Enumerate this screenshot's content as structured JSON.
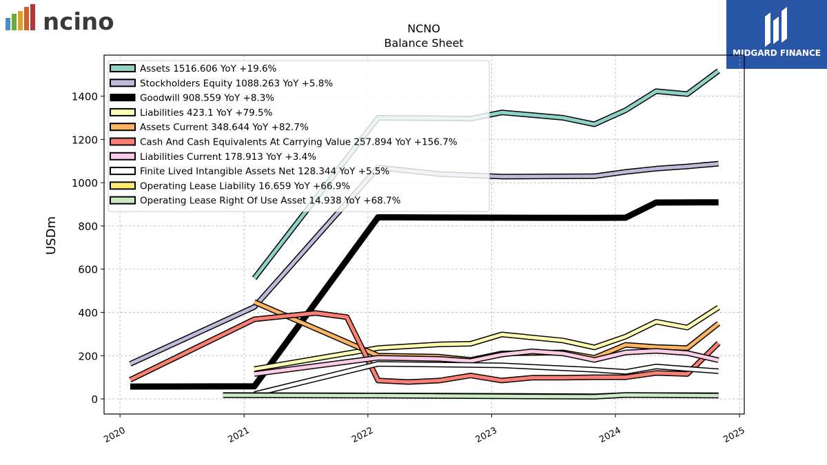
{
  "brand": {
    "left_logo_text": "ncino.",
    "right_logo_text": "MIDGARD FINANCE"
  },
  "chart_data": {
    "type": "line",
    "title": "NCNO",
    "subtitle": "Balance  Sheet",
    "ylabel": "USDm",
    "xlabel": "",
    "xlim": [
      "2019-11-15",
      "2025-01-15"
    ],
    "ylim": [
      -70,
      1590
    ],
    "x_ticks": [
      "2020",
      "2021",
      "2022",
      "2023",
      "2024",
      "2025"
    ],
    "y_ticks": [
      0,
      200,
      400,
      600,
      800,
      1000,
      1200,
      1400
    ],
    "grid": true,
    "legend_position": "top-left",
    "series": [
      {
        "name": "Assets  1516.606 YoY +19.6%",
        "color": "#8dd3c7",
        "width": 5,
        "points": [
          [
            "2021-01-31",
            558
          ],
          [
            "2022-01-31",
            1300
          ],
          [
            "2022-07-31",
            1298
          ],
          [
            "2022-10-31",
            1296
          ],
          [
            "2023-01-31",
            1325
          ],
          [
            "2023-07-31",
            1300
          ],
          [
            "2023-10-31",
            1270
          ],
          [
            "2024-01-31",
            1335
          ],
          [
            "2024-04-30",
            1423
          ],
          [
            "2024-07-31",
            1410
          ],
          [
            "2024-10-31",
            1517
          ]
        ]
      },
      {
        "name": "Stockholders Equity  1088.263 YoY +5.8%",
        "color": "#bebada",
        "width": 5,
        "points": [
          [
            "2020-01-31",
            162
          ],
          [
            "2021-01-31",
            425
          ],
          [
            "2022-01-31",
            1070
          ],
          [
            "2022-07-31",
            1040
          ],
          [
            "2023-01-31",
            1028
          ],
          [
            "2023-10-31",
            1030
          ],
          [
            "2024-01-31",
            1050
          ],
          [
            "2024-04-30",
            1065
          ],
          [
            "2024-07-31",
            1075
          ],
          [
            "2024-10-31",
            1088
          ]
        ]
      },
      {
        "name": "Goodwill  908.559 YoY +8.3%",
        "color": "#000000",
        "width": 9,
        "points": [
          [
            "2020-01-31",
            57
          ],
          [
            "2021-01-31",
            58
          ],
          [
            "2022-01-31",
            840
          ],
          [
            "2023-01-31",
            838
          ],
          [
            "2023-10-31",
            837
          ],
          [
            "2024-01-31",
            838
          ],
          [
            "2024-04-30",
            908
          ],
          [
            "2024-10-31",
            909
          ]
        ]
      },
      {
        "name": "Liabilities  423.1 YoY +79.5%",
        "color": "#ffffb3",
        "width": 5,
        "points": [
          [
            "2021-01-31",
            138
          ],
          [
            "2022-01-31",
            235
          ],
          [
            "2022-07-31",
            252
          ],
          [
            "2022-10-31",
            255
          ],
          [
            "2023-01-31",
            298
          ],
          [
            "2023-07-31",
            270
          ],
          [
            "2023-10-31",
            238
          ],
          [
            "2024-01-31",
            288
          ],
          [
            "2024-04-30",
            357
          ],
          [
            "2024-07-31",
            330
          ],
          [
            "2024-10-31",
            423
          ]
        ]
      },
      {
        "name": "Assets Current  348.644 YoY +82.7%",
        "color": "#fdb462",
        "width": 5,
        "points": [
          [
            "2021-01-31",
            448
          ],
          [
            "2022-01-31",
            200
          ],
          [
            "2022-07-31",
            195
          ],
          [
            "2022-10-31",
            180
          ],
          [
            "2023-01-31",
            210
          ],
          [
            "2023-07-31",
            215
          ],
          [
            "2023-10-31",
            190
          ],
          [
            "2024-01-31",
            250
          ],
          [
            "2024-04-30",
            240
          ],
          [
            "2024-07-31",
            235
          ],
          [
            "2024-10-31",
            349
          ]
        ]
      },
      {
        "name": "Cash And Cash Equivalents At Carrying Value  257.894 YoY +156.7%",
        "color": "#fb8072",
        "width": 5,
        "points": [
          [
            "2020-01-31",
            88
          ],
          [
            "2021-01-31",
            368
          ],
          [
            "2021-07-31",
            397
          ],
          [
            "2021-10-31",
            378
          ],
          [
            "2022-01-31",
            85
          ],
          [
            "2022-04-30",
            78
          ],
          [
            "2022-07-31",
            85
          ],
          [
            "2022-10-31",
            108
          ],
          [
            "2023-01-31",
            85
          ],
          [
            "2023-04-30",
            98
          ],
          [
            "2023-07-31",
            98
          ],
          [
            "2023-10-31",
            100
          ],
          [
            "2024-01-31",
            100
          ],
          [
            "2024-04-30",
            120
          ],
          [
            "2024-07-31",
            115
          ],
          [
            "2024-10-31",
            258
          ]
        ]
      },
      {
        "name": "Liabilities Current  178.913 YoY +3.4%",
        "color": "#fccde5",
        "width": 5,
        "points": [
          [
            "2021-01-31",
            115
          ],
          [
            "2022-01-31",
            190
          ],
          [
            "2022-07-31",
            185
          ],
          [
            "2022-10-31",
            175
          ],
          [
            "2023-01-31",
            205
          ],
          [
            "2023-04-30",
            220
          ],
          [
            "2023-07-31",
            210
          ],
          [
            "2023-10-31",
            180
          ],
          [
            "2024-01-31",
            215
          ],
          [
            "2024-04-30",
            222
          ],
          [
            "2024-07-31",
            212
          ],
          [
            "2024-10-31",
            179
          ]
        ]
      },
      {
        "name": "Finite Lived Intangible Assets Net  128.344 YoY +5.5%",
        "color": "#ffffff",
        "width": 5,
        "points": [
          [
            "2021-01-31",
            22
          ],
          [
            "2022-01-31",
            162
          ],
          [
            "2023-01-31",
            155
          ],
          [
            "2023-10-31",
            135
          ],
          [
            "2024-01-31",
            125
          ],
          [
            "2024-04-30",
            150
          ],
          [
            "2024-10-31",
            128
          ]
        ]
      },
      {
        "name": "Operating Lease Liability  16.659 YoY +66.9%",
        "color": "#ffed6f",
        "width": 5,
        "points": [
          [
            "2020-10-31",
            18
          ],
          [
            "2022-01-31",
            16
          ],
          [
            "2023-01-31",
            14
          ],
          [
            "2023-10-31",
            12
          ],
          [
            "2024-01-31",
            18
          ],
          [
            "2024-10-31",
            17
          ]
        ]
      },
      {
        "name": "Operating Lease Right Of Use Asset  14.938 YoY +68.7%",
        "color": "#ccebc5",
        "width": 5,
        "points": [
          [
            "2020-10-31",
            17
          ],
          [
            "2022-01-31",
            15
          ],
          [
            "2023-01-31",
            12
          ],
          [
            "2023-10-31",
            10
          ],
          [
            "2024-01-31",
            18
          ],
          [
            "2024-10-31",
            15
          ]
        ]
      }
    ]
  }
}
